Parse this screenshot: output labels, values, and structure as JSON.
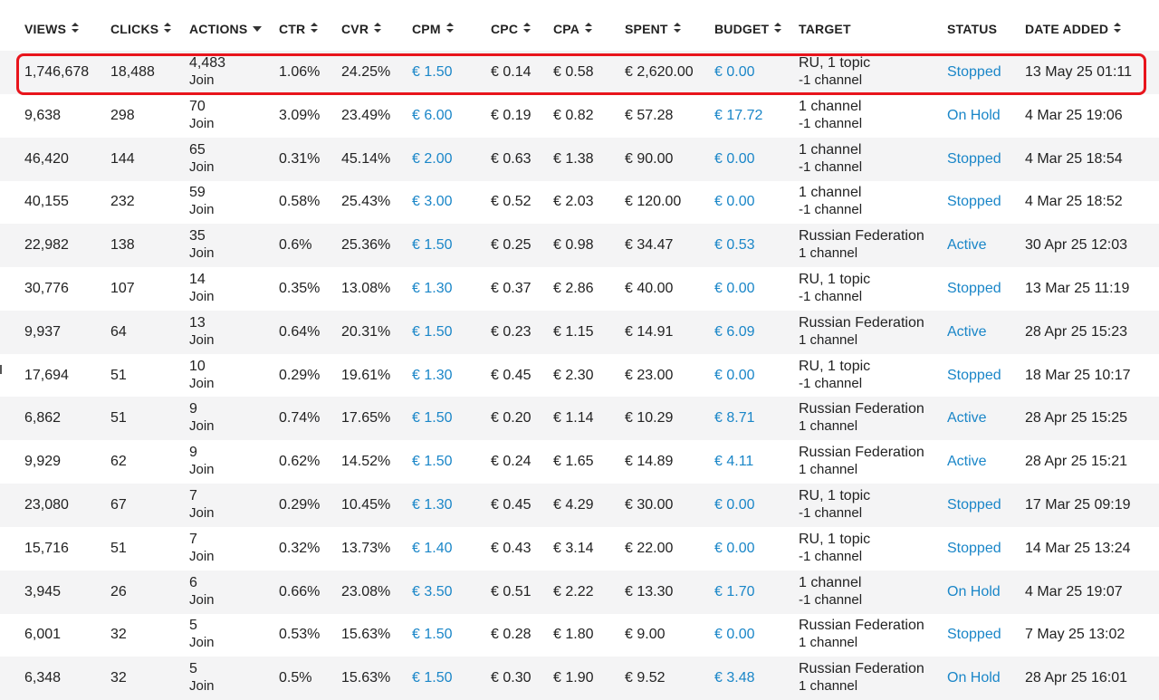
{
  "table": {
    "columns": [
      {
        "key": "views",
        "label": "VIEWS",
        "sort": "both"
      },
      {
        "key": "clicks",
        "label": "CLICKS",
        "sort": "both"
      },
      {
        "key": "actions",
        "label": "ACTIONS",
        "sort": "desc"
      },
      {
        "key": "ctr",
        "label": "CTR",
        "sort": "both"
      },
      {
        "key": "cvr",
        "label": "CVR",
        "sort": "both"
      },
      {
        "key": "cpm",
        "label": "CPM",
        "sort": "both"
      },
      {
        "key": "cpc",
        "label": "CPC",
        "sort": "both"
      },
      {
        "key": "cpa",
        "label": "CPA",
        "sort": "both"
      },
      {
        "key": "spent",
        "label": "SPENT",
        "sort": "both"
      },
      {
        "key": "budget",
        "label": "BUDGET",
        "sort": "both"
      },
      {
        "key": "target",
        "label": "TARGET",
        "sort": "none"
      },
      {
        "key": "status",
        "label": "STATUS",
        "sort": "none"
      },
      {
        "key": "date",
        "label": "DATE ADDED",
        "sort": "both"
      }
    ],
    "action_unit": "Join",
    "rows": [
      {
        "views": "1,746,678",
        "clicks": "18,488",
        "actions": "4,483",
        "ctr": "1.06%",
        "cvr": "24.25%",
        "cpm": "€ 1.50",
        "cpc": "€ 0.14",
        "cpa": "€ 0.58",
        "spent": "€ 2,620.00",
        "budget": "€ 0.00",
        "target_line1": "RU, 1 topic",
        "target_line2": "-1 channel",
        "status": "Stopped",
        "date": "13 May 25 01:11"
      },
      {
        "views": "9,638",
        "clicks": "298",
        "actions": "70",
        "ctr": "3.09%",
        "cvr": "23.49%",
        "cpm": "€ 6.00",
        "cpc": "€ 0.19",
        "cpa": "€ 0.82",
        "spent": "€ 57.28",
        "budget": "€ 17.72",
        "target_line1": "1 channel",
        "target_line2": "-1 channel",
        "status": "On Hold",
        "date": "4 Mar 25 19:06"
      },
      {
        "views": "46,420",
        "clicks": "144",
        "actions": "65",
        "ctr": "0.31%",
        "cvr": "45.14%",
        "cpm": "€ 2.00",
        "cpc": "€ 0.63",
        "cpa": "€ 1.38",
        "spent": "€ 90.00",
        "budget": "€ 0.00",
        "target_line1": "1 channel",
        "target_line2": "-1 channel",
        "status": "Stopped",
        "date": "4 Mar 25 18:54"
      },
      {
        "views": "40,155",
        "clicks": "232",
        "actions": "59",
        "ctr": "0.58%",
        "cvr": "25.43%",
        "cpm": "€ 3.00",
        "cpc": "€ 0.52",
        "cpa": "€ 2.03",
        "spent": "€ 120.00",
        "budget": "€ 0.00",
        "target_line1": "1 channel",
        "target_line2": "-1 channel",
        "status": "Stopped",
        "date": "4 Mar 25 18:52"
      },
      {
        "views": "22,982",
        "clicks": "138",
        "actions": "35",
        "ctr": "0.6%",
        "cvr": "25.36%",
        "cpm": "€ 1.50",
        "cpc": "€ 0.25",
        "cpa": "€ 0.98",
        "spent": "€ 34.47",
        "budget": "€ 0.53",
        "target_line1": "Russian Federation",
        "target_line2": "1 channel",
        "status": "Active",
        "date": "30 Apr 25 12:03"
      },
      {
        "views": "30,776",
        "clicks": "107",
        "actions": "14",
        "ctr": "0.35%",
        "cvr": "13.08%",
        "cpm": "€ 1.30",
        "cpc": "€ 0.37",
        "cpa": "€ 2.86",
        "spent": "€ 40.00",
        "budget": "€ 0.00",
        "target_line1": "RU, 1 topic",
        "target_line2": "-1 channel",
        "status": "Stopped",
        "date": "13 Mar 25 11:19"
      },
      {
        "views": "9,937",
        "clicks": "64",
        "actions": "13",
        "ctr": "0.64%",
        "cvr": "20.31%",
        "cpm": "€ 1.50",
        "cpc": "€ 0.23",
        "cpa": "€ 1.15",
        "spent": "€ 14.91",
        "budget": "€ 6.09",
        "target_line1": "Russian Federation",
        "target_line2": "1 channel",
        "status": "Active",
        "date": "28 Apr 25 15:23"
      },
      {
        "views": "17,694",
        "clicks": "51",
        "actions": "10",
        "ctr": "0.29%",
        "cvr": "19.61%",
        "cpm": "€ 1.30",
        "cpc": "€ 0.45",
        "cpa": "€ 2.30",
        "spent": "€ 23.00",
        "budget": "€ 0.00",
        "target_line1": "RU, 1 topic",
        "target_line2": "-1 channel",
        "status": "Stopped",
        "date": "18 Mar 25 10:17"
      },
      {
        "views": "6,862",
        "clicks": "51",
        "actions": "9",
        "ctr": "0.74%",
        "cvr": "17.65%",
        "cpm": "€ 1.50",
        "cpc": "€ 0.20",
        "cpa": "€ 1.14",
        "spent": "€ 10.29",
        "budget": "€ 8.71",
        "target_line1": "Russian Federation",
        "target_line2": "1 channel",
        "status": "Active",
        "date": "28 Apr 25 15:25"
      },
      {
        "views": "9,929",
        "clicks": "62",
        "actions": "9",
        "ctr": "0.62%",
        "cvr": "14.52%",
        "cpm": "€ 1.50",
        "cpc": "€ 0.24",
        "cpa": "€ 1.65",
        "spent": "€ 14.89",
        "budget": "€ 4.11",
        "target_line1": "Russian Federation",
        "target_line2": "1 channel",
        "status": "Active",
        "date": "28 Apr 25 15:21"
      },
      {
        "views": "23,080",
        "clicks": "67",
        "actions": "7",
        "ctr": "0.29%",
        "cvr": "10.45%",
        "cpm": "€ 1.30",
        "cpc": "€ 0.45",
        "cpa": "€ 4.29",
        "spent": "€ 30.00",
        "budget": "€ 0.00",
        "target_line1": "RU, 1 topic",
        "target_line2": "-1 channel",
        "status": "Stopped",
        "date": "17 Mar 25 09:19"
      },
      {
        "views": "15,716",
        "clicks": "51",
        "actions": "7",
        "ctr": "0.32%",
        "cvr": "13.73%",
        "cpm": "€ 1.40",
        "cpc": "€ 0.43",
        "cpa": "€ 3.14",
        "spent": "€ 22.00",
        "budget": "€ 0.00",
        "target_line1": "RU, 1 topic",
        "target_line2": "-1 channel",
        "status": "Stopped",
        "date": "14 Mar 25 13:24"
      },
      {
        "views": "3,945",
        "clicks": "26",
        "actions": "6",
        "ctr": "0.66%",
        "cvr": "23.08%",
        "cpm": "€ 3.50",
        "cpc": "€ 0.51",
        "cpa": "€ 2.22",
        "spent": "€ 13.30",
        "budget": "€ 1.70",
        "target_line1": "1 channel",
        "target_line2": "-1 channel",
        "status": "On Hold",
        "date": "4 Mar 25 19:07"
      },
      {
        "views": "6,001",
        "clicks": "32",
        "actions": "5",
        "ctr": "0.53%",
        "cvr": "15.63%",
        "cpm": "€ 1.50",
        "cpc": "€ 0.28",
        "cpa": "€ 1.80",
        "spent": "€ 9.00",
        "budget": "€ 0.00",
        "target_line1": "Russian Federation",
        "target_line2": "1 channel",
        "status": "Stopped",
        "date": "7 May 25 13:02"
      },
      {
        "views": "6,348",
        "clicks": "32",
        "actions": "5",
        "ctr": "0.5%",
        "cvr": "15.63%",
        "cpm": "€ 1.50",
        "cpc": "€ 0.30",
        "cpa": "€ 1.90",
        "spent": "€ 9.52",
        "budget": "€ 3.48",
        "target_line1": "Russian Federation",
        "target_line2": "1 channel",
        "status": "On Hold",
        "date": "28 Apr 25 16:01"
      }
    ]
  },
  "colors": {
    "link": "#1a86c8",
    "highlight": "#e8141c",
    "row_alt": "#f4f4f5",
    "text": "#222222"
  }
}
